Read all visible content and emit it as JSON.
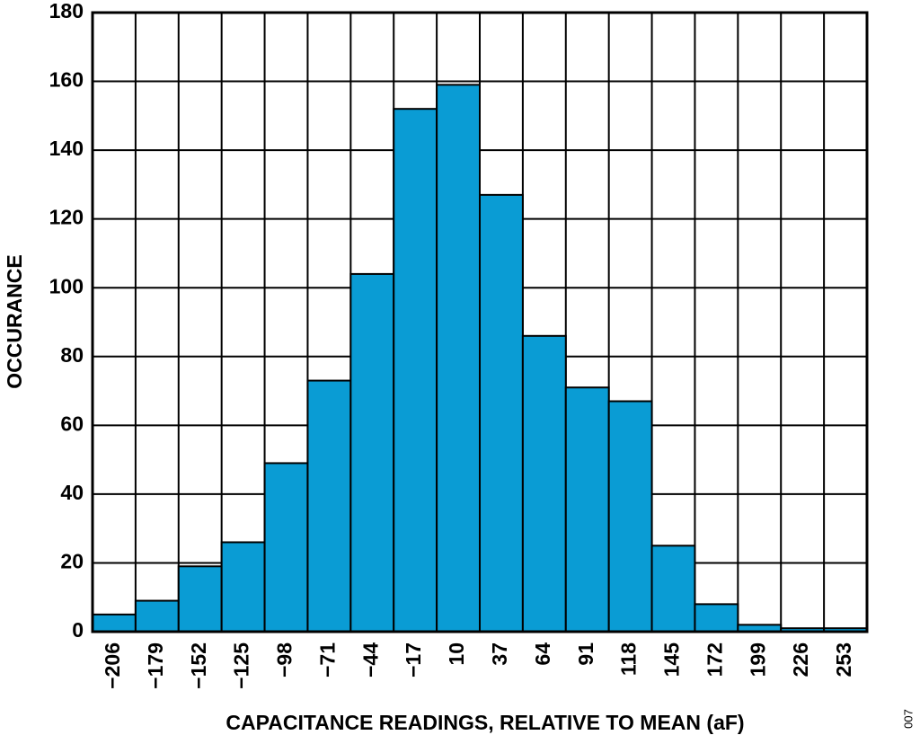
{
  "chart_data": {
    "type": "bar",
    "x_label": "CAPACITANCE READINGS, RELATIVE TO MEAN (aF)",
    "y_label": "OCCURANCE",
    "annotation": "007",
    "categories": [
      "−206",
      "−179",
      "−152",
      "−125",
      "−98",
      "−71",
      "−44",
      "−17",
      "10",
      "37",
      "64",
      "91",
      "118",
      "145",
      "172",
      "199",
      "226",
      "253"
    ],
    "values": [
      5,
      9,
      19,
      26,
      49,
      73,
      104,
      152,
      159,
      127,
      86,
      71,
      67,
      25,
      8,
      2,
      1,
      1
    ],
    "color": "#0a9cd4",
    "ylim": [
      0,
      180
    ],
    "yticks": [
      0,
      20,
      40,
      60,
      80,
      100,
      120,
      140,
      160,
      180
    ],
    "grid": true
  }
}
